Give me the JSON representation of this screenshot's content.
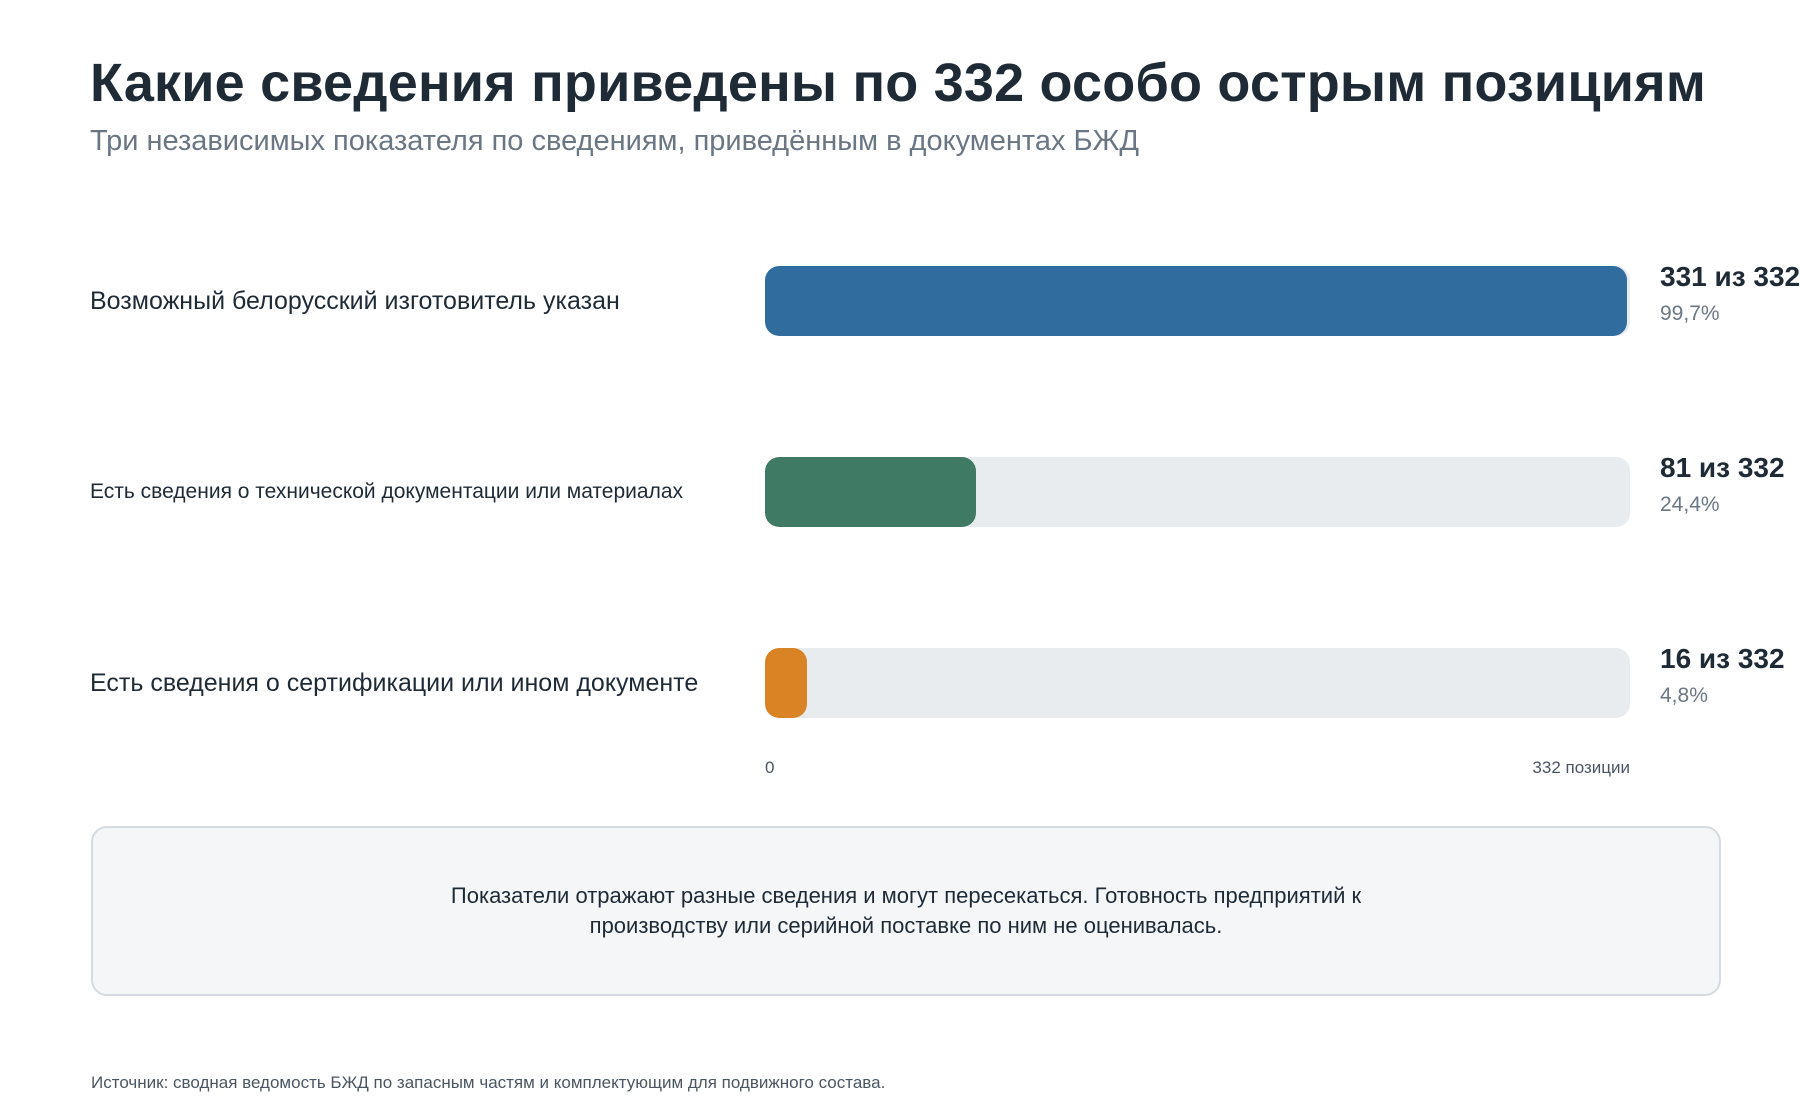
{
  "header": {
    "title": "Какие сведения приведены по 332 особо острым позициям",
    "subtitle": "Три независимых показателя по сведениям, приведённым в документах БЖД"
  },
  "colors": {
    "series_1": "#306d9e",
    "series_2": "#3f7b64",
    "series_3": "#d98324",
    "track": "#e8ecef"
  },
  "chart_data": {
    "type": "bar",
    "orientation": "horizontal",
    "total": 332,
    "xlim": [
      0,
      332
    ],
    "x_tick_labels": [
      "0",
      "332 позиции"
    ],
    "categories": [
      "Возможный белорусский изготовитель указан",
      "Есть сведения о технической документации или материалах",
      "Есть сведения о сертификации или ином документе"
    ],
    "values": [
      331,
      81,
      16
    ],
    "value_labels": [
      "331 из 332",
      "81 из 332",
      "16 из 332"
    ],
    "percent_labels": [
      "99,7%",
      "24,4%",
      "4,8%"
    ],
    "percentages": [
      99.7,
      24.4,
      4.8
    ],
    "grid": false,
    "legend": "none"
  },
  "note": {
    "text": "Показатели отражают разные сведения и могут пересекаться. Готовность предприятий к производству или серийной поставке по ним не оценивалась."
  },
  "footer": {
    "source": "Источник: сводная ведомость БЖД по запасным частям и комплектующим для подвижного состава."
  }
}
